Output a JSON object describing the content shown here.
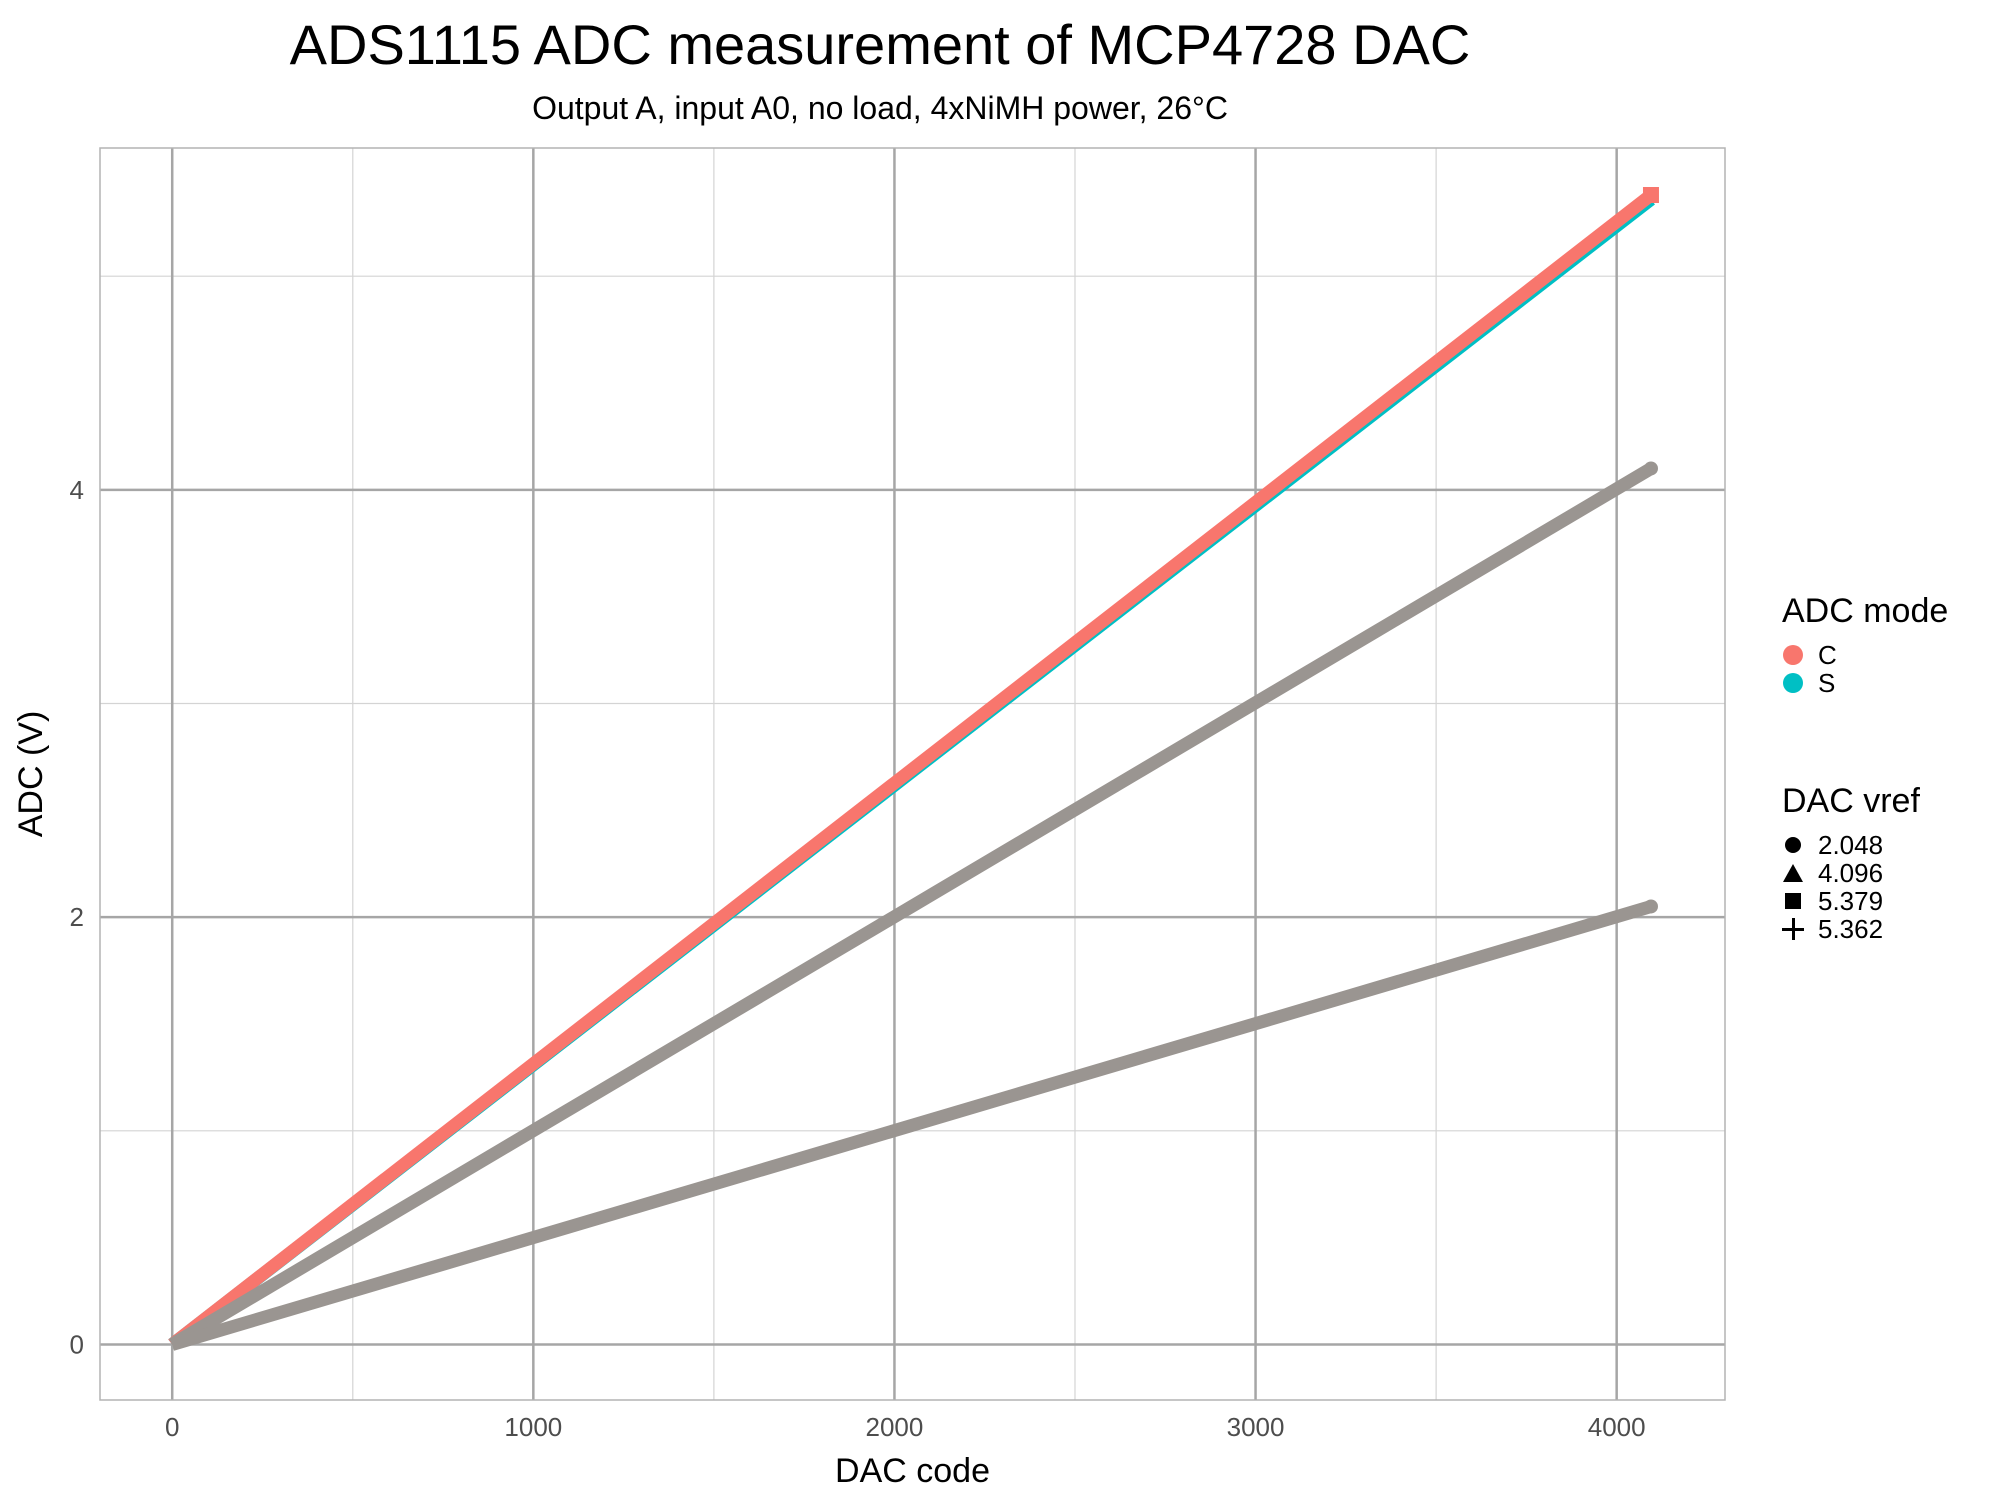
{
  "chart_data": {
    "type": "line",
    "title": "ADS1115 ADC measurement of MCP4728 DAC",
    "subtitle": "Output A, input A0, no load, 4xNiMH power, 26°C",
    "xlabel": "DAC code",
    "ylabel": "ADC (V)",
    "xlim": [
      -200,
      4300
    ],
    "ylim": [
      -0.26,
      5.6
    ],
    "x_ticks": [
      0,
      1000,
      2000,
      3000,
      4000
    ],
    "x_tick_labels": [
      "0",
      "1000",
      "2000",
      "3000",
      "4000"
    ],
    "y_ticks": [
      0,
      2,
      4
    ],
    "y_tick_labels": [
      "0",
      "2",
      "4"
    ],
    "grid": true,
    "legend_position": "right",
    "series": [
      {
        "color_group": "S",
        "shape_group": "5.362",
        "color": "#00BFC4",
        "points": [
          [
            0,
            0
          ],
          [
            4095,
            5.36
          ]
        ]
      },
      {
        "color_group": "C",
        "shape_group": "5.379",
        "color": "#F8766D",
        "points": [
          [
            0,
            0
          ],
          [
            4095,
            5.38
          ]
        ]
      },
      {
        "color_group": "C",
        "shape_group": "4.096",
        "color": "#9a9591",
        "points": [
          [
            0,
            0
          ],
          [
            4095,
            4.1
          ]
        ]
      },
      {
        "color_group": "C",
        "shape_group": "2.048",
        "color": "#9a9591",
        "points": [
          [
            0,
            0
          ],
          [
            4095,
            2.05
          ]
        ]
      }
    ]
  },
  "legend": {
    "color_title": "ADC mode",
    "color_items": [
      {
        "label": "C",
        "color": "#F8766D"
      },
      {
        "label": "S",
        "color": "#00BFC4"
      }
    ],
    "shape_title": "DAC vref",
    "shape_items": [
      {
        "label": "2.048",
        "shape": "circle"
      },
      {
        "label": "4.096",
        "shape": "triangle"
      },
      {
        "label": "5.379",
        "shape": "square"
      },
      {
        "label": "5.362",
        "shape": "plus"
      }
    ]
  }
}
